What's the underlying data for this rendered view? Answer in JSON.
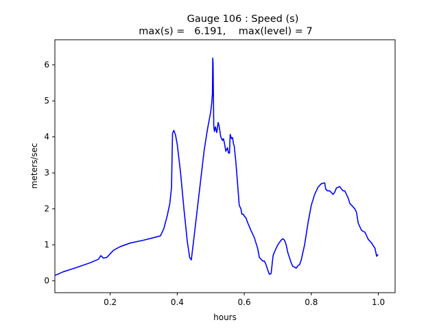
{
  "chart_data": {
    "type": "line",
    "title": "Gauge 106 : Speed (s)",
    "subtitle": "max(s) =   6.191,    max(level) = 7",
    "xlabel": "hours",
    "ylabel": "meters/sec",
    "xlim": [
      0.035,
      1.05
    ],
    "ylim": [
      -0.33,
      6.7
    ],
    "xticks": [
      0.2,
      0.4,
      0.6,
      0.8,
      1.0
    ],
    "xtick_labels": [
      "0.2",
      "0.4",
      "0.6",
      "0.8",
      "1.0"
    ],
    "yticks": [
      0,
      1,
      2,
      3,
      4,
      5,
      6
    ],
    "ytick_labels": [
      "0",
      "1",
      "2",
      "3",
      "4",
      "5",
      "6"
    ],
    "grid": false,
    "series": [
      {
        "color": "#0000ff",
        "x": [
          0.035,
          0.06,
          0.1,
          0.14,
          0.165,
          0.172,
          0.18,
          0.19,
          0.2,
          0.21,
          0.23,
          0.26,
          0.3,
          0.33,
          0.35,
          0.36,
          0.37,
          0.378,
          0.383,
          0.386,
          0.39,
          0.395,
          0.4,
          0.41,
          0.42,
          0.43,
          0.437,
          0.442,
          0.45,
          0.46,
          0.47,
          0.48,
          0.49,
          0.5,
          0.503,
          0.505,
          0.506,
          0.507,
          0.509,
          0.511,
          0.514,
          0.518,
          0.522,
          0.525,
          0.53,
          0.535,
          0.538,
          0.541,
          0.545,
          0.55,
          0.553,
          0.556,
          0.558,
          0.562,
          0.565,
          0.568,
          0.57,
          0.575,
          0.58,
          0.585,
          0.59,
          0.593,
          0.597,
          0.6,
          0.605,
          0.61,
          0.62,
          0.63,
          0.64,
          0.645,
          0.65,
          0.655,
          0.66,
          0.665,
          0.67,
          0.675,
          0.68,
          0.683,
          0.686,
          0.69,
          0.7,
          0.71,
          0.715,
          0.72,
          0.725,
          0.73,
          0.74,
          0.745,
          0.75,
          0.755,
          0.76,
          0.765,
          0.77,
          0.78,
          0.79,
          0.8,
          0.81,
          0.82,
          0.83,
          0.84,
          0.843,
          0.848,
          0.855,
          0.86,
          0.865,
          0.87,
          0.875,
          0.88,
          0.885,
          0.89,
          0.895,
          0.9,
          0.905,
          0.91,
          0.915,
          0.93,
          0.935,
          0.94,
          0.95,
          0.96,
          0.97,
          0.98,
          0.99,
          0.995,
          0.997,
          1.0
        ],
        "y": [
          0.15,
          0.25,
          0.37,
          0.5,
          0.6,
          0.7,
          0.63,
          0.65,
          0.75,
          0.85,
          0.95,
          1.05,
          1.13,
          1.2,
          1.25,
          1.45,
          1.8,
          2.15,
          2.6,
          4.1,
          4.18,
          4.05,
          3.8,
          3.0,
          2.0,
          1.1,
          0.65,
          0.58,
          1.2,
          2.0,
          2.8,
          3.6,
          4.2,
          4.7,
          4.95,
          5.2,
          6.19,
          6.05,
          4.3,
          4.15,
          4.28,
          4.12,
          4.4,
          4.3,
          4.0,
          3.9,
          3.95,
          3.82,
          3.6,
          3.7,
          3.55,
          3.55,
          4.07,
          3.95,
          3.98,
          3.8,
          3.75,
          3.3,
          2.7,
          2.1,
          2.0,
          1.85,
          1.85,
          1.8,
          1.75,
          1.62,
          1.4,
          1.2,
          0.9,
          0.65,
          0.6,
          0.55,
          0.55,
          0.45,
          0.3,
          0.18,
          0.2,
          0.45,
          0.7,
          0.8,
          1.0,
          1.13,
          1.17,
          1.13,
          1.0,
          0.78,
          0.5,
          0.4,
          0.38,
          0.35,
          0.42,
          0.45,
          0.58,
          1.0,
          1.6,
          2.1,
          2.4,
          2.6,
          2.7,
          2.72,
          2.55,
          2.5,
          2.5,
          2.45,
          2.4,
          2.47,
          2.58,
          2.6,
          2.62,
          2.55,
          2.5,
          2.5,
          2.4,
          2.3,
          2.15,
          2.0,
          1.9,
          1.6,
          1.4,
          1.35,
          1.15,
          1.05,
          0.9,
          0.68,
          0.72,
          0.72
        ]
      }
    ]
  }
}
